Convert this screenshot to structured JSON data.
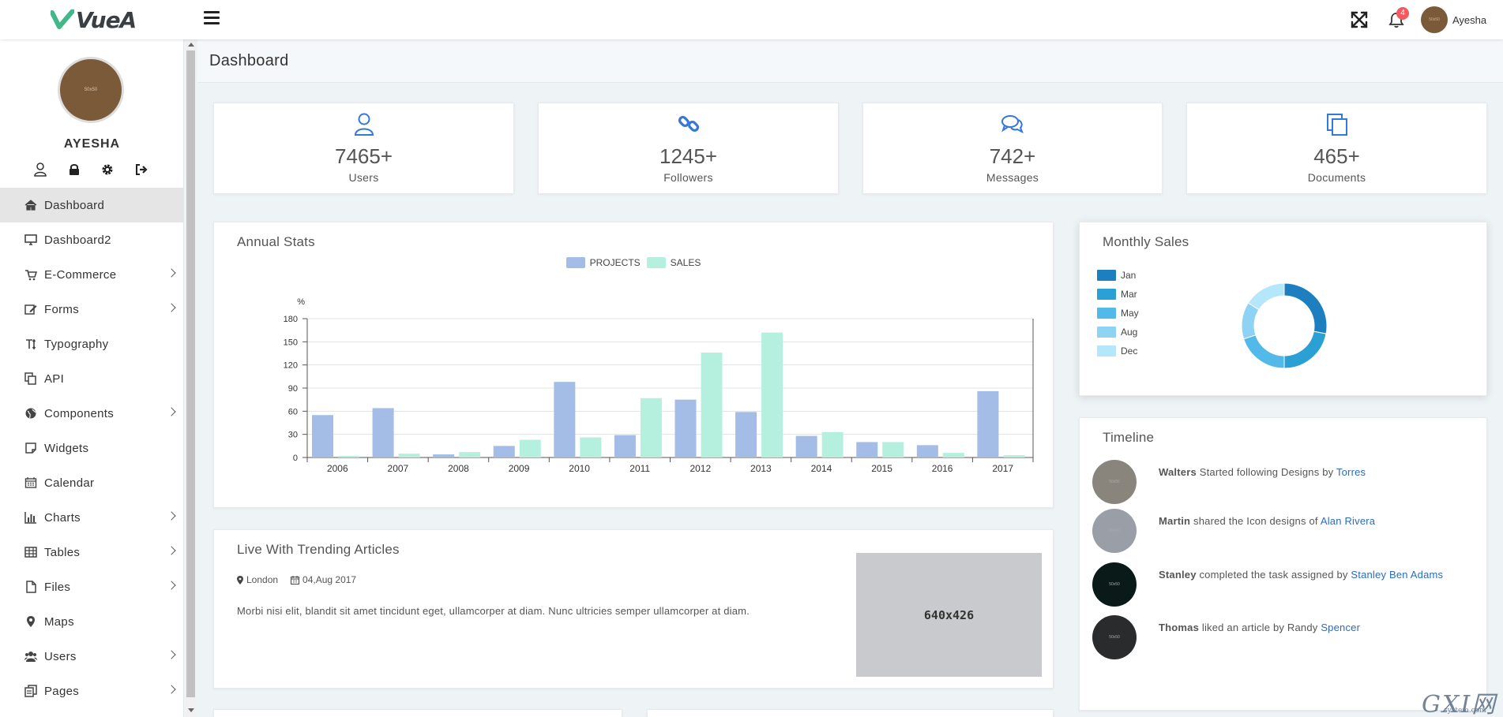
{
  "header": {
    "logo_text": "VueA",
    "notifications_count": "4",
    "username": "Ayesha"
  },
  "sidebar": {
    "profile_name": "AYESHA",
    "avatar_text": "50x50",
    "profile_icons": [
      "user-icon",
      "lock-icon",
      "gear-icon",
      "sign-out-icon"
    ],
    "items": [
      {
        "label": "Dashboard",
        "icon": "home-icon",
        "active": true,
        "submenu": false
      },
      {
        "label": "Dashboard2",
        "icon": "desktop-icon",
        "active": false,
        "submenu": false
      },
      {
        "label": "E-Commerce",
        "icon": "cart-icon",
        "active": false,
        "submenu": true
      },
      {
        "label": "Forms",
        "icon": "edit-icon",
        "active": false,
        "submenu": true
      },
      {
        "label": "Typography",
        "icon": "text-height-icon",
        "active": false,
        "submenu": false
      },
      {
        "label": "API",
        "icon": "copy-icon",
        "active": false,
        "submenu": false
      },
      {
        "label": "Components",
        "icon": "globe-icon",
        "active": false,
        "submenu": true
      },
      {
        "label": "Widgets",
        "icon": "sticky-note-icon",
        "active": false,
        "submenu": false
      },
      {
        "label": "Calendar",
        "icon": "calendar-icon",
        "active": false,
        "submenu": false
      },
      {
        "label": "Charts",
        "icon": "bar-chart-icon",
        "active": false,
        "submenu": true
      },
      {
        "label": "Tables",
        "icon": "table-icon",
        "active": false,
        "submenu": true
      },
      {
        "label": "Files",
        "icon": "file-icon",
        "active": false,
        "submenu": true
      },
      {
        "label": "Maps",
        "icon": "map-marker-icon",
        "active": false,
        "submenu": false
      },
      {
        "label": "Users",
        "icon": "users-icon",
        "active": false,
        "submenu": true
      },
      {
        "label": "Pages",
        "icon": "pages-icon",
        "active": false,
        "submenu": true
      }
    ]
  },
  "page": {
    "title": "Dashboard"
  },
  "stats": [
    {
      "value": "7465+",
      "label": "Users",
      "icon": "user-icon"
    },
    {
      "value": "1245+",
      "label": "Followers",
      "icon": "link-icon"
    },
    {
      "value": "742+",
      "label": "Messages",
      "icon": "comments-icon"
    },
    {
      "value": "465+",
      "label": "Documents",
      "icon": "documents-icon"
    }
  ],
  "annual_stats": {
    "title": "Annual Stats",
    "chart_data": {
      "type": "bar",
      "categories": [
        "2006",
        "2007",
        "2008",
        "2009",
        "2010",
        "2011",
        "2012",
        "2013",
        "2014",
        "2015",
        "2016",
        "2017"
      ],
      "series": [
        {
          "name": "PROJECTS",
          "values": [
            55,
            64,
            4,
            15,
            98,
            29,
            75,
            59,
            28,
            20,
            16,
            86
          ]
        },
        {
          "name": "SALES",
          "values": [
            2,
            5,
            7,
            23,
            26,
            77,
            136,
            162,
            33,
            20,
            6,
            3
          ]
        }
      ],
      "ylabel": "%",
      "ylim": [
        0,
        180
      ],
      "yticks": [
        "0",
        "30",
        "60",
        "90",
        "120",
        "150",
        "180"
      ],
      "grid": true,
      "legend": "top-center",
      "colors": [
        "#a3bde6",
        "#b5f0de"
      ]
    }
  },
  "monthly_sales": {
    "title": "Monthly Sales",
    "chart_data": {
      "type": "pie",
      "categories": [
        "Jan",
        "Mar",
        "May",
        "Aug",
        "Dec"
      ],
      "values": [
        28,
        22,
        20,
        14,
        16
      ],
      "legend": "left",
      "colors": [
        "#1d7fc0",
        "#2aa0d4",
        "#52b9e8",
        "#8ed2f4",
        "#b5e7fa"
      ]
    }
  },
  "article": {
    "title": "Live With Trending Articles",
    "location": "London",
    "date": "04,Aug 2017",
    "text": "Morbi nisi elit, blandit sit amet tincidunt eget, ullamcorper at diam. Nunc ultricies semper ullamcorper at diam.",
    "image_text": "640x426"
  },
  "timeline": {
    "title": "Timeline",
    "items": [
      {
        "name": "Walters",
        "action": "Started following Designs by",
        "link": "Torres",
        "avatar_color": "#8a857c"
      },
      {
        "name": "Martin",
        "action": "shared the Icon designs of",
        "link": "Alan Rivera",
        "avatar_color": "#9a9ea6"
      },
      {
        "name": "Stanley",
        "action": "completed the task assigned by",
        "link": "Stanley Ben Adams",
        "avatar_color": "#0a1a18"
      },
      {
        "name": "Thomas",
        "action": "liked an article by Randy",
        "link": "Spencer",
        "avatar_color": "#2a2b2d"
      }
    ]
  },
  "watermark": {
    "main": "GXI网",
    "sub": "system.com"
  }
}
